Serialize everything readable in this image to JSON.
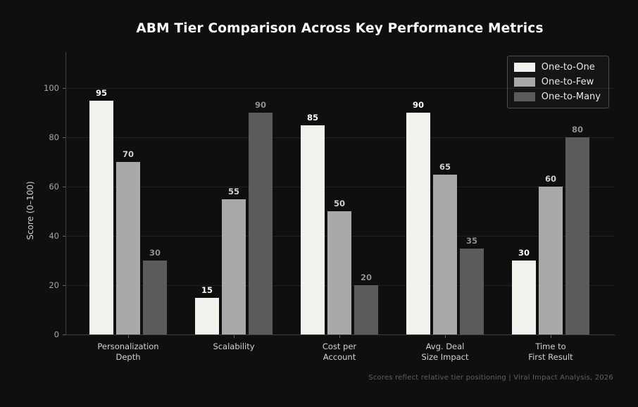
{
  "chart_data": {
    "type": "bar",
    "title": "ABM Tier Comparison Across Key Performance Metrics",
    "ylabel": "Score (0–100)",
    "categories": [
      "Personalization\nDepth",
      "Scalability",
      "Cost per\nAccount",
      "Avg. Deal\nSize Impact",
      "Time to\nFirst Result"
    ],
    "series": [
      {
        "name": "One-to-One",
        "color": "#f1f1ee",
        "label_color": "#ffffff",
        "values": [
          95,
          15,
          85,
          90,
          30
        ]
      },
      {
        "name": "One-to-Few",
        "color": "#a9a9a9",
        "label_color": "#d0d0d0",
        "values": [
          70,
          55,
          50,
          65,
          60
        ]
      },
      {
        "name": "One-to-Many",
        "color": "#5b5b5b",
        "label_color": "#8f8f8f",
        "values": [
          30,
          90,
          20,
          35,
          80
        ]
      }
    ],
    "ylim": [
      0,
      100
    ],
    "yticks": [
      0,
      20,
      40,
      60,
      80,
      100
    ],
    "grid": true,
    "legend_position": "upper right",
    "footnote": "Scores reflect relative tier positioning | Viral Impact Analysis, 2026",
    "colors": {
      "background": "#0f0f0f",
      "title": "#ffffff",
      "axis": "#3f3f3f",
      "tick_labels": "#a6a6a6",
      "footnote": "#5f5f5f"
    }
  }
}
